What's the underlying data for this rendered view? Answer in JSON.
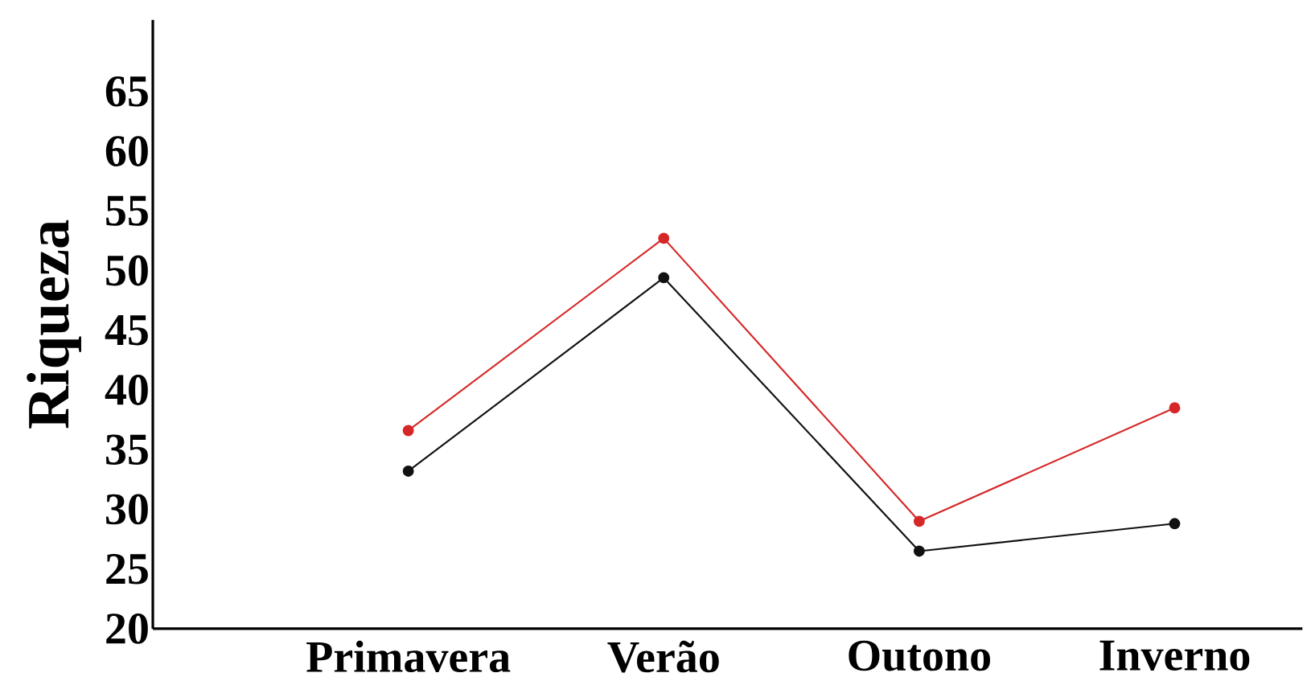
{
  "chart_data": {
    "type": "line",
    "ylabel": "Riqueza",
    "categories": [
      "Primavera",
      "Verão",
      "Outono",
      "Inverno"
    ],
    "series": [
      {
        "color": "#d62728",
        "values": [
          36.6,
          52.7,
          29.0,
          38.5
        ]
      },
      {
        "color": "#111111",
        "values": [
          33.2,
          49.4,
          26.5,
          28.8
        ]
      }
    ],
    "ylim": [
      20,
      71
    ],
    "yticks": [
      20,
      25,
      30,
      35,
      40,
      45,
      50,
      55,
      60,
      65
    ],
    "grid": false,
    "marker": "circle",
    "line_style": "solid"
  }
}
